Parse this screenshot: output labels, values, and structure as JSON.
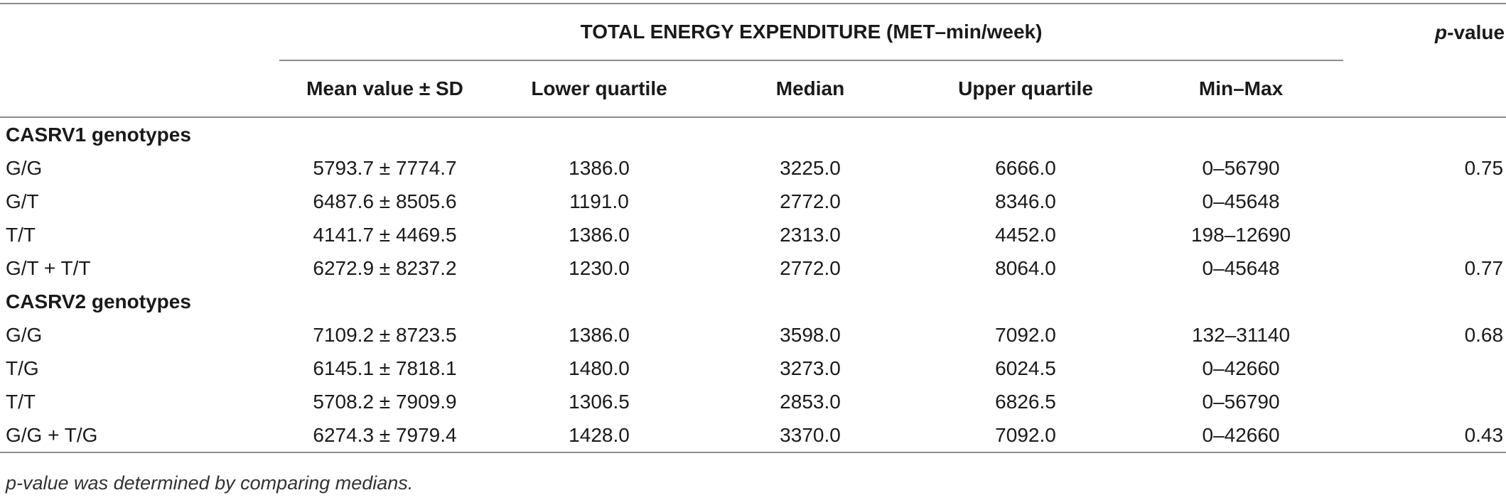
{
  "table": {
    "group_header": "TOTAL ENERGY EXPENDITURE (MET–min/week)",
    "pvalue_header_italic": "p",
    "pvalue_header_rest": "-value",
    "columns": [
      "Mean value ± SD",
      "Lower quartile",
      "Median",
      "Upper quartile",
      "Min–Max"
    ],
    "sections": [
      {
        "title": "CASRV1 genotypes",
        "rows": [
          {
            "label": "G/G",
            "mean_sd": "5793.7 ± 7774.7",
            "lower": "1386.0",
            "median": "3225.0",
            "upper": "6666.0",
            "minmax": "0–56790",
            "p": "0.75"
          },
          {
            "label": "G/T",
            "mean_sd": "6487.6 ± 8505.6",
            "lower": "1191.0",
            "median": "2772.0",
            "upper": "8346.0",
            "minmax": "0–45648",
            "p": ""
          },
          {
            "label": "T/T",
            "mean_sd": "4141.7 ± 4469.5",
            "lower": "1386.0",
            "median": "2313.0",
            "upper": "4452.0",
            "minmax": "198–12690",
            "p": ""
          },
          {
            "label": "G/T + T/T",
            "mean_sd": "6272.9 ± 8237.2",
            "lower": "1230.0",
            "median": "2772.0",
            "upper": "8064.0",
            "minmax": "0–45648",
            "p": "0.77"
          }
        ]
      },
      {
        "title": "CASRV2 genotypes",
        "rows": [
          {
            "label": "G/G",
            "mean_sd": "7109.2 ± 8723.5",
            "lower": "1386.0",
            "median": "3598.0",
            "upper": "7092.0",
            "minmax": "132–31140",
            "p": "0.68"
          },
          {
            "label": "T/G",
            "mean_sd": "6145.1 ± 7818.1",
            "lower": "1480.0",
            "median": "3273.0",
            "upper": "6024.5",
            "minmax": "0–42660",
            "p": ""
          },
          {
            "label": "T/T",
            "mean_sd": "5708.2 ± 7909.9",
            "lower": "1306.5",
            "median": "2853.0",
            "upper": "6826.5",
            "minmax": "0–56790",
            "p": ""
          },
          {
            "label": "G/G + T/G",
            "mean_sd": "6274.3 ± 7979.4",
            "lower": "1428.0",
            "median": "3370.0",
            "upper": "7092.0",
            "minmax": "0–42660",
            "p": "0.43"
          }
        ]
      }
    ],
    "footnote": "p-value was determined by comparing medians."
  }
}
